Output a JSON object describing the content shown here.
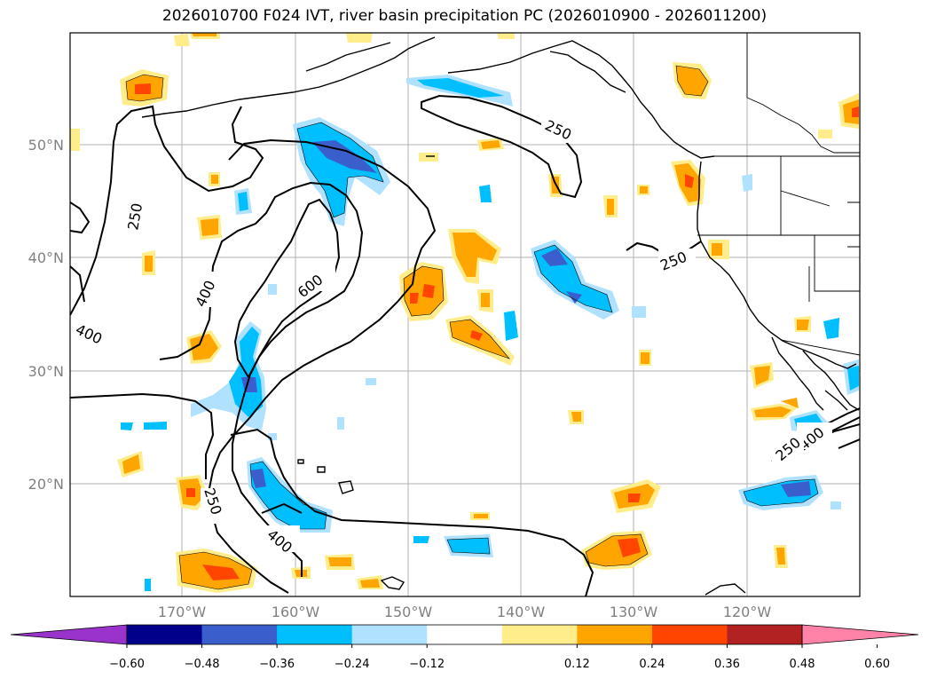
{
  "title": "2026010700 F024 IVT, river basin precipitation PC (2026010900 - 2026011200)",
  "map": {
    "lat_labels": [
      "50°N",
      "40°N",
      "30°N",
      "20°N"
    ],
    "lon_labels": [
      "170°W",
      "160°W",
      "150°W",
      "140°W",
      "130°W",
      "120°W"
    ],
    "ivt_contour_levels": [
      "250",
      "400",
      "600"
    ],
    "contour_labels": {
      "c1": "250",
      "c2": "400",
      "c3": "400",
      "c4": "600",
      "c5": "250",
      "c6": "250",
      "c7": "400",
      "c8": "250",
      "c9": "400",
      "c10": "250"
    }
  },
  "colorbar": {
    "ticks": [
      "−0.60",
      "−0.48",
      "−0.36",
      "−0.24",
      "−0.12",
      "0.12",
      "0.24",
      "0.36",
      "0.48",
      "0.60"
    ],
    "colors": [
      "#9933cc",
      "#00008b",
      "#3a5fcd",
      "#00bfff",
      "#b0e2ff",
      "#ffffff",
      "#ffec8b",
      "#ffa500",
      "#ff4500",
      "#b22222",
      "#ff83a8"
    ]
  },
  "colors": {
    "neg_light": "#b0e2ff",
    "neg_mid": "#00bfff",
    "neg_strong": "#3a5fcd",
    "pos_light": "#ffec8b",
    "pos_mid": "#ffa500",
    "pos_strong": "#ff4500",
    "grid": "#b0b0b0",
    "coast": "#000000"
  }
}
